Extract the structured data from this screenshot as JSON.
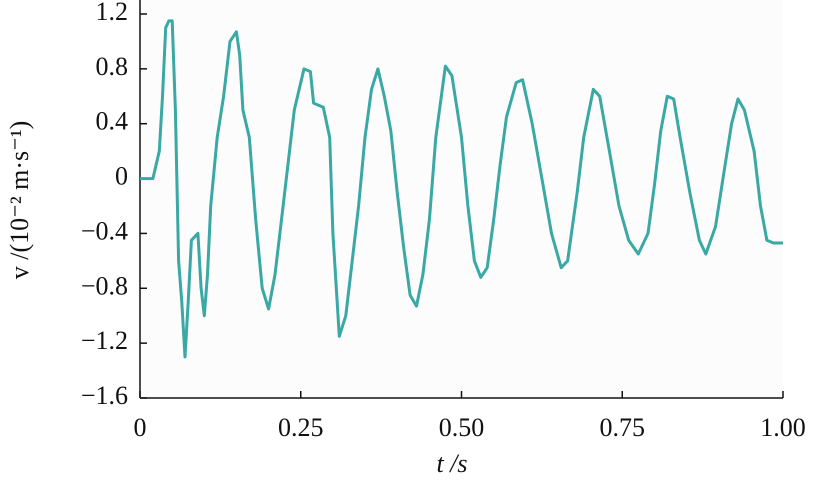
{
  "chart_data": {
    "type": "line",
    "xlabel": "t /s",
    "ylabel": "v /(10⁻² m·s⁻¹)",
    "xlim": [
      0,
      1.0
    ],
    "ylim": [
      -1.6,
      1.2
    ],
    "xticks": [
      0,
      0.25,
      {
        "value": 0.5,
        "label": "0.50"
      },
      0.75,
      {
        "value": 1.0,
        "label": "1.00"
      }
    ],
    "yticks": [
      {
        "value": -1.6,
        "label": "−1.6"
      },
      {
        "value": -1.2,
        "label": "−1.2"
      },
      {
        "value": -0.8,
        "label": "−0.8"
      },
      {
        "value": -0.4,
        "label": "−0.4"
      },
      0,
      0.4,
      0.8,
      1.2
    ],
    "grid": false,
    "series": [
      {
        "color": "#3aa8a4",
        "x": [
          0,
          0.02,
          0.03,
          0.035,
          0.04,
          0.045,
          0.05,
          0.055,
          0.06,
          0.065,
          0.07,
          0.075,
          0.08,
          0.09,
          0.095,
          0.1,
          0.105,
          0.11,
          0.12,
          0.13,
          0.14,
          0.15,
          0.155,
          0.16,
          0.17,
          0.18,
          0.19,
          0.2,
          0.21,
          0.22,
          0.23,
          0.24,
          0.255,
          0.265,
          0.27,
          0.285,
          0.295,
          0.3,
          0.31,
          0.32,
          0.33,
          0.34,
          0.35,
          0.36,
          0.37,
          0.38,
          0.39,
          0.4,
          0.41,
          0.42,
          0.43,
          0.44,
          0.45,
          0.46,
          0.475,
          0.485,
          0.5,
          0.51,
          0.52,
          0.53,
          0.54,
          0.55,
          0.56,
          0.57,
          0.585,
          0.595,
          0.61,
          0.625,
          0.64,
          0.655,
          0.665,
          0.68,
          0.69,
          0.705,
          0.715,
          0.73,
          0.745,
          0.76,
          0.775,
          0.79,
          0.8,
          0.81,
          0.82,
          0.83,
          0.84,
          0.855,
          0.87,
          0.88,
          0.895,
          0.91,
          0.92,
          0.93,
          0.94,
          0.955,
          0.965,
          0.975,
          0.985,
          1.0
        ],
        "values": [
          0,
          0,
          0.2,
          0.6,
          1.1,
          1.15,
          1.15,
          0.5,
          -0.6,
          -0.9,
          -1.3,
          -0.9,
          -0.45,
          -0.4,
          -0.8,
          -1.0,
          -0.7,
          -0.2,
          0.3,
          0.6,
          1.0,
          1.07,
          0.9,
          0.5,
          0.3,
          -0.3,
          -0.8,
          -0.95,
          -0.7,
          -0.3,
          0.1,
          0.5,
          0.8,
          0.78,
          0.55,
          0.52,
          0.3,
          -0.4,
          -1.15,
          -1.0,
          -0.6,
          -0.2,
          0.3,
          0.65,
          0.8,
          0.6,
          0.35,
          -0.1,
          -0.5,
          -0.85,
          -0.93,
          -0.7,
          -0.3,
          0.3,
          0.82,
          0.75,
          0.3,
          -0.2,
          -0.6,
          -0.72,
          -0.65,
          -0.3,
          0.1,
          0.45,
          0.7,
          0.72,
          0.4,
          0,
          -0.4,
          -0.65,
          -0.6,
          -0.1,
          0.3,
          0.65,
          0.6,
          0.2,
          -0.2,
          -0.45,
          -0.55,
          -0.4,
          -0.05,
          0.35,
          0.6,
          0.58,
          0.3,
          -0.1,
          -0.45,
          -0.55,
          -0.35,
          0.1,
          0.4,
          0.58,
          0.5,
          0.2,
          -0.2,
          -0.45,
          -0.47,
          -0.47
        ]
      }
    ]
  }
}
